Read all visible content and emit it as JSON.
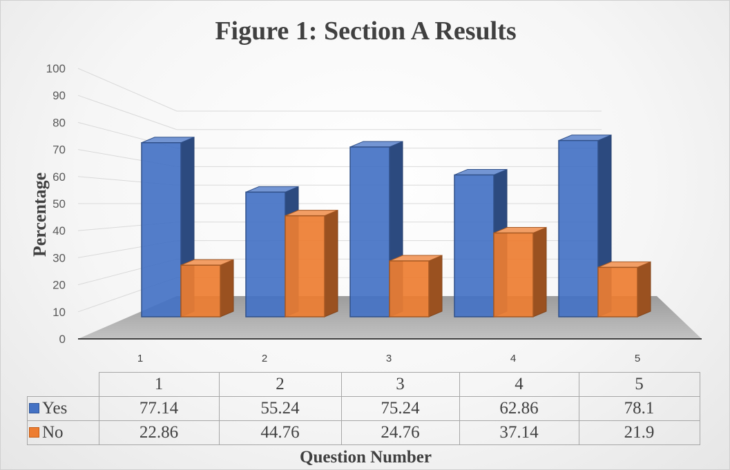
{
  "chart_data": {
    "type": "bar",
    "title": "Figure 1: Section A Results",
    "xlabel": "Question Number",
    "ylabel": "Percentage",
    "categories": [
      "1",
      "2",
      "3",
      "4",
      "5"
    ],
    "series": [
      {
        "name": "Yes",
        "values": [
          77.14,
          55.24,
          75.24,
          62.86,
          78.1
        ],
        "color": "#4472C4"
      },
      {
        "name": "No",
        "values": [
          22.86,
          44.76,
          24.76,
          37.14,
          21.9
        ],
        "color": "#ED7D31"
      }
    ],
    "y_ticks": [
      "0",
      "10",
      "20",
      "30",
      "40",
      "50",
      "60",
      "70",
      "80",
      "90",
      "100"
    ],
    "ylim": [
      0,
      100
    ],
    "grid": true,
    "legend": "data-table",
    "data_table": {
      "header": [
        "1",
        "2",
        "3",
        "4",
        "5"
      ],
      "rows": [
        {
          "label": "Yes",
          "cells": [
            "77.14",
            "55.24",
            "75.24",
            "62.86",
            "78.1"
          ]
        },
        {
          "label": "No",
          "cells": [
            "22.86",
            "44.76",
            "24.76",
            "37.14",
            "21.9"
          ]
        }
      ]
    }
  }
}
